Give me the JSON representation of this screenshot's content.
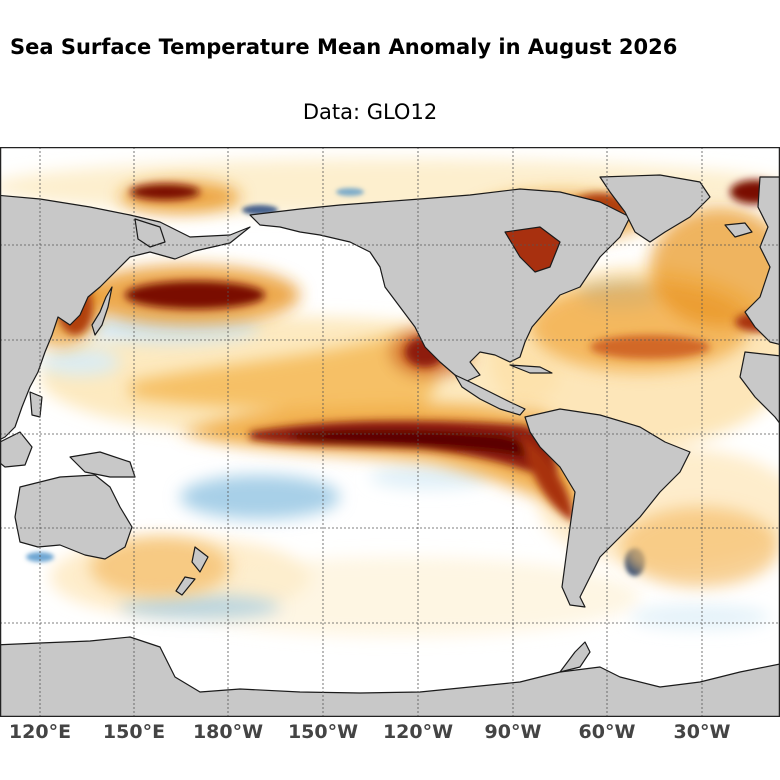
{
  "title": "Sea Surface Temperature Mean Anomaly in August 2026",
  "subtitle": "Data: GLO12",
  "map": {
    "projection": "equirectangular, Pacific-centered",
    "gridlines": true,
    "land_color": "#c8c8c8",
    "ocean_neutral_color": "#ffffff",
    "colormap": {
      "warm": [
        "#fde9b8",
        "#f7c46a",
        "#e8941e",
        "#c9541a",
        "#8e1a0c",
        "#5a0000"
      ],
      "cool": [
        "#d8ecf6",
        "#9fcbe6",
        "#4a90c8",
        "#163e7a"
      ]
    },
    "longitude_ticks": [
      "120°E",
      "150°E",
      "180°W",
      "150°W",
      "120°W",
      "90°W",
      "60°W",
      "30°W"
    ]
  }
}
